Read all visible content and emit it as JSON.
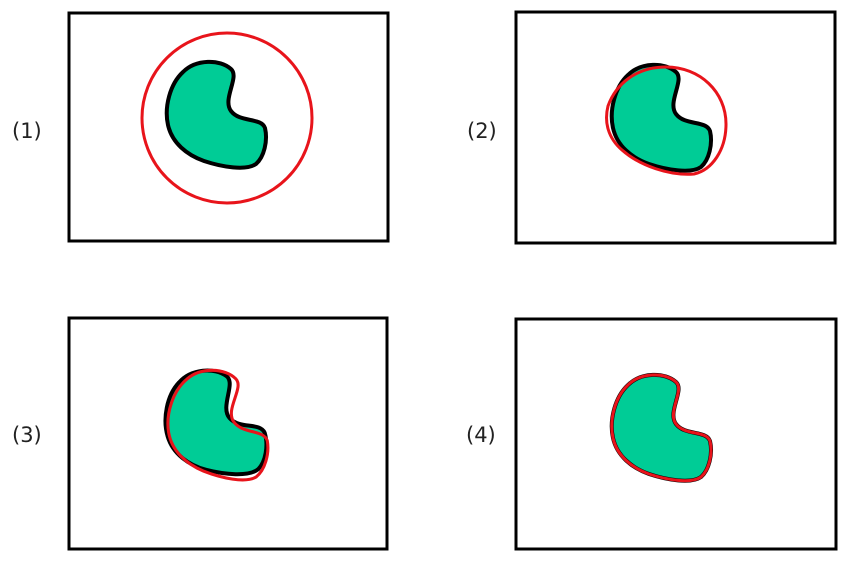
{
  "colors": {
    "object_fill": "#00cc96",
    "object_outline": "#000000",
    "contour": "#e8141b",
    "frame": "#000000"
  },
  "panels": [
    {
      "label": "(1)"
    },
    {
      "label": "(2)"
    },
    {
      "label": "(3)"
    },
    {
      "label": "(4)"
    }
  ]
}
